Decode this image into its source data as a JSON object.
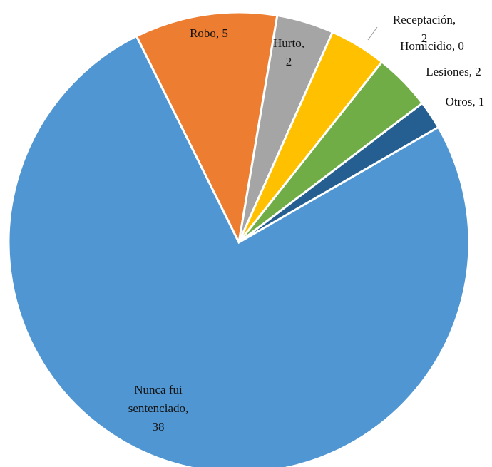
{
  "chart_data": {
    "type": "pie",
    "categories": [
      "Robo",
      "Hurto",
      "Receptación",
      "Homicidio",
      "Lesiones",
      "Otros",
      "Nunca fui sentenciado"
    ],
    "values": [
      5,
      2,
      2,
      0,
      2,
      1,
      38
    ],
    "value_labels": [
      "Robo, 5",
      "Hurto, 2",
      "Receptación, 2",
      "Homicidio, 0",
      "Lesiones, 2",
      "Otros, 1",
      "Nunca fui sentenciado, 38"
    ],
    "colors": [
      "#ed7d31",
      "#a5a5a5",
      "#ffc000",
      "#4472c4",
      "#70ad47",
      "#255e91",
      "#5096d2"
    ]
  }
}
